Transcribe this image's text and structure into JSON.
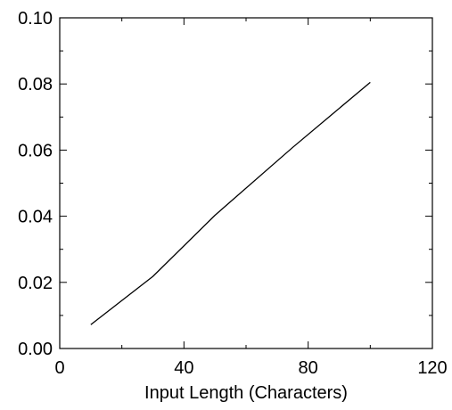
{
  "chart_data": {
    "type": "line",
    "title": "",
    "xlabel": "Input Length (Characters)",
    "ylabel": "",
    "xlim": [
      0,
      120
    ],
    "ylim": [
      0.0,
      0.1
    ],
    "x_ticks": [
      0,
      40,
      80,
      120
    ],
    "x_tick_labels": [
      "0",
      "40",
      "80",
      "120"
    ],
    "y_ticks": [
      0.0,
      0.02,
      0.04,
      0.06,
      0.08,
      0.1
    ],
    "y_tick_labels": [
      "0.00",
      "0.02",
      "0.04",
      "0.06",
      "0.08",
      "0.10"
    ],
    "grid": false,
    "legend": "none",
    "series": [
      {
        "x": [
          10,
          30,
          50,
          75,
          100
        ],
        "y": [
          0.0072,
          0.0218,
          0.0403,
          0.0608,
          0.0805
        ],
        "color": "#000000"
      }
    ]
  }
}
